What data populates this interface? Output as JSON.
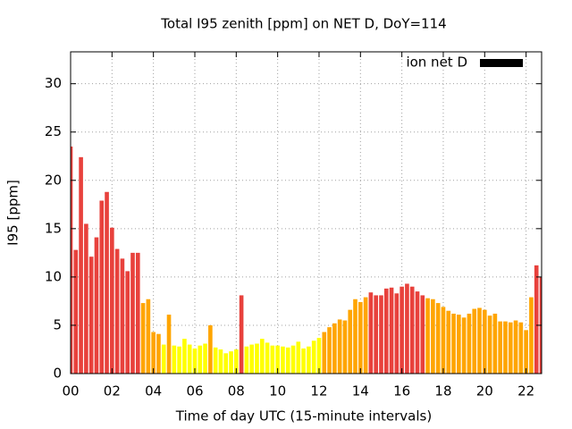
{
  "chart_data": {
    "type": "bar",
    "title": "Total I95 zenith [ppm] on NET D, DoY=114",
    "xlabel": "Time of day UTC (15-minute intervals)",
    "ylabel": "I95 [ppm]",
    "x": [
      0,
      0.25,
      0.5,
      0.75,
      1,
      1.25,
      1.5,
      1.75,
      2,
      2.25,
      2.5,
      2.75,
      3,
      3.25,
      3.5,
      3.75,
      4,
      4.25,
      4.5,
      4.75,
      5,
      5.25,
      5.5,
      5.75,
      6,
      6.25,
      6.5,
      6.75,
      7,
      7.25,
      7.5,
      7.75,
      8,
      8.25,
      8.5,
      8.75,
      9,
      9.25,
      9.5,
      9.75,
      10,
      10.25,
      10.5,
      10.75,
      11,
      11.25,
      11.5,
      11.75,
      12,
      12.25,
      12.5,
      12.75,
      13,
      13.25,
      13.5,
      13.75,
      14,
      14.25,
      14.5,
      14.75,
      15,
      15.25,
      15.5,
      15.75,
      16,
      16.25,
      16.5,
      16.75,
      17,
      17.25,
      17.5,
      17.75,
      18,
      18.25,
      18.5,
      18.75,
      19,
      19.25,
      19.5,
      19.75,
      20,
      20.25,
      20.5,
      20.75,
      21,
      21.25,
      21.5,
      21.75,
      22,
      22.25,
      22.5,
      22.75
    ],
    "series": [
      {
        "name": "ion net D",
        "color": "#000000",
        "values": [
          23.5,
          12.8,
          22.4,
          15.5,
          12.1,
          14.1,
          17.9,
          18.8,
          15.1,
          12.9,
          11.9,
          10.6,
          12.5,
          12.5,
          7.3,
          7.7,
          4.3,
          4.1,
          3.0,
          6.1,
          2.9,
          2.8,
          3.6,
          3.0,
          2.6,
          2.9,
          3.1,
          5.0,
          2.7,
          2.5,
          2.1,
          2.3,
          2.5,
          8.1,
          2.8,
          3.0,
          3.1,
          3.6,
          3.2,
          2.9,
          2.9,
          2.8,
          2.7,
          2.9,
          3.3,
          2.6,
          2.8,
          3.4,
          3.7,
          4.3,
          4.8,
          5.2,
          5.6,
          5.5,
          6.6,
          7.7,
          7.4,
          7.9,
          8.4,
          8.1,
          8.1,
          8.8,
          8.9,
          8.3,
          9.0,
          9.3,
          9.0,
          8.5,
          8.1,
          7.8,
          7.7,
          7.3,
          6.9,
          6.5,
          6.2,
          6.1,
          5.8,
          6.2,
          6.7,
          6.8,
          6.6,
          6.0,
          6.2,
          5.4,
          5.4,
          5.3,
          5.5,
          5.3,
          4.5,
          7.9,
          11.2,
          10.0
        ],
        "colors": [
          "#e8413c",
          "#e8413c",
          "#e8413c",
          "#e8413c",
          "#e8413c",
          "#e8413c",
          "#e8413c",
          "#e8413c",
          "#e8413c",
          "#e8413c",
          "#e8413c",
          "#e8413c",
          "#e8413c",
          "#e8413c",
          "#ffa500",
          "#ffa500",
          "#ffa500",
          "#ffa500",
          "#ffff00",
          "#ffa500",
          "#ffff00",
          "#ffff00",
          "#ffff00",
          "#ffff00",
          "#ffff00",
          "#ffff00",
          "#ffff00",
          "#ffa500",
          "#ffff00",
          "#ffff00",
          "#ffff00",
          "#ffff00",
          "#ffff00",
          "#e8413c",
          "#ffff00",
          "#ffff00",
          "#ffff00",
          "#ffff00",
          "#ffff00",
          "#ffff00",
          "#ffff00",
          "#ffff00",
          "#ffff00",
          "#ffff00",
          "#ffff00",
          "#ffff00",
          "#ffff00",
          "#ffff00",
          "#ffff00",
          "#ffa500",
          "#ffa500",
          "#ffa500",
          "#ffa500",
          "#ffa500",
          "#ffa500",
          "#ffa500",
          "#ffa500",
          "#ffa500",
          "#e8413c",
          "#e8413c",
          "#e8413c",
          "#e8413c",
          "#e8413c",
          "#e8413c",
          "#e8413c",
          "#e8413c",
          "#e8413c",
          "#e8413c",
          "#e8413c",
          "#ffa500",
          "#ffa500",
          "#ffa500",
          "#ffa500",
          "#ffa500",
          "#ffa500",
          "#ffa500",
          "#ffa500",
          "#ffa500",
          "#ffa500",
          "#ffa500",
          "#ffa500",
          "#ffa500",
          "#ffa500",
          "#ffa500",
          "#ffa500",
          "#ffa500",
          "#ffa500",
          "#ffa500",
          "#ffa500",
          "#ffa500",
          "#e8413c",
          "#e8413c"
        ]
      }
    ],
    "xlim": [
      0,
      22.75
    ],
    "xticks": [
      {
        "value": 0,
        "label": "00"
      },
      {
        "value": 2,
        "label": "02"
      },
      {
        "value": 4,
        "label": "04"
      },
      {
        "value": 6,
        "label": "06"
      },
      {
        "value": 8,
        "label": "08"
      },
      10,
      12,
      14,
      16,
      18,
      20,
      22
    ],
    "ylim": [
      0,
      33.3
    ],
    "yticks": [
      0,
      5,
      10,
      15,
      20,
      25,
      30
    ],
    "grid": true,
    "legend": "top-right"
  }
}
